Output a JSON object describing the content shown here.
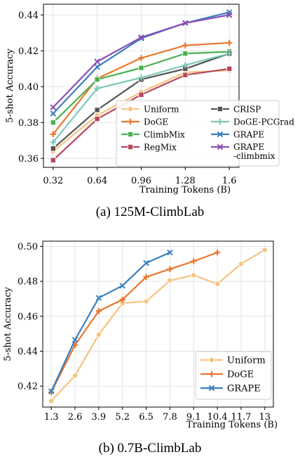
{
  "chart_data": [
    {
      "type": "line",
      "caption": "(a)  125M-ClimbLab",
      "xlabel": "Training Tokens (B)",
      "ylabel": "5-shot Accuracy",
      "x": [
        0.32,
        0.64,
        0.96,
        1.28,
        1.6
      ],
      "x_tick_labels": [
        "0.32",
        "0.64",
        "0.96",
        "1.28",
        "1.6"
      ],
      "y_ticks": [
        "0.36",
        "0.38",
        "0.40",
        "0.42",
        "0.44"
      ],
      "ylim": [
        0.355,
        0.446
      ],
      "legend_position": "lower-right",
      "series": [
        {
          "name": "Uniform",
          "color": "#f5c37e",
          "marker": "circle",
          "values": [
            0.364,
            0.384,
            0.397,
            0.408,
            0.409
          ]
        },
        {
          "name": "DoGE",
          "color": "#e8772e",
          "marker": "plus",
          "values": [
            0.3735,
            0.4045,
            0.416,
            0.423,
            0.4245
          ]
        },
        {
          "name": "ClimbMix",
          "color": "#4bb04f",
          "marker": "square",
          "values": [
            0.38,
            0.404,
            0.4105,
            0.4185,
            0.4195
          ]
        },
        {
          "name": "RegMix",
          "color": "#b5475e",
          "marker": "square",
          "values": [
            0.359,
            0.382,
            0.3955,
            0.4065,
            0.41
          ]
        },
        {
          "name": "CRISP",
          "color": "#555555",
          "marker": "square",
          "values": [
            0.3655,
            0.387,
            0.404,
            0.41,
            0.4185
          ]
        },
        {
          "name": "DoGE-PCGrad",
          "color": "#7dc9b9",
          "marker": "plus",
          "values": [
            0.369,
            0.399,
            0.405,
            0.412,
            0.4185
          ]
        },
        {
          "name": "GRAPE",
          "color": "#3a7fbe",
          "marker": "x",
          "values": [
            0.385,
            0.411,
            0.427,
            0.4355,
            0.4415
          ]
        },
        {
          "name": "GRAPE\n-climbmix",
          "name_lines": [
            "GRAPE",
            "-climbmix"
          ],
          "color": "#8a4fb5",
          "marker": "x",
          "values": [
            0.3885,
            0.414,
            0.4275,
            0.4355,
            0.44
          ]
        }
      ]
    },
    {
      "type": "line",
      "caption": "(b)  0.7B-ClimbLab",
      "xlabel": "Training Tokens (B)",
      "ylabel": "5-shot Accuracy",
      "x": [
        1.3,
        2.6,
        3.9,
        5.2,
        6.5,
        7.8,
        9.1,
        10.4,
        11.7,
        13
      ],
      "x_tick_labels": [
        "1.3",
        "2.6",
        "3.9",
        "5.2",
        "6.5",
        "7.8",
        "9.1",
        "10.4",
        "11.7",
        "13"
      ],
      "y_ticks": [
        "0.42",
        "0.44",
        "0.46",
        "0.48",
        "0.50"
      ],
      "ylim": [
        0.408,
        0.503
      ],
      "legend_position": "lower-right",
      "series": [
        {
          "name": "Uniform",
          "color": "#f5c37e",
          "marker": "circle",
          "values": [
            0.4115,
            0.426,
            0.4495,
            0.4675,
            0.4685,
            0.4805,
            0.4835,
            0.4785,
            0.49,
            0.498
          ]
        },
        {
          "name": "DoGE",
          "color": "#e8772e",
          "marker": "plus",
          "values": [
            0.4165,
            0.4435,
            0.463,
            0.4695,
            0.4825,
            0.487,
            0.4915,
            0.4965,
            null,
            null
          ]
        },
        {
          "name": "GRAPE",
          "color": "#3a7fbe",
          "marker": "x",
          "values": [
            0.417,
            0.4465,
            0.4705,
            0.4775,
            0.4905,
            0.4965,
            null,
            null,
            null,
            null
          ]
        }
      ]
    }
  ]
}
